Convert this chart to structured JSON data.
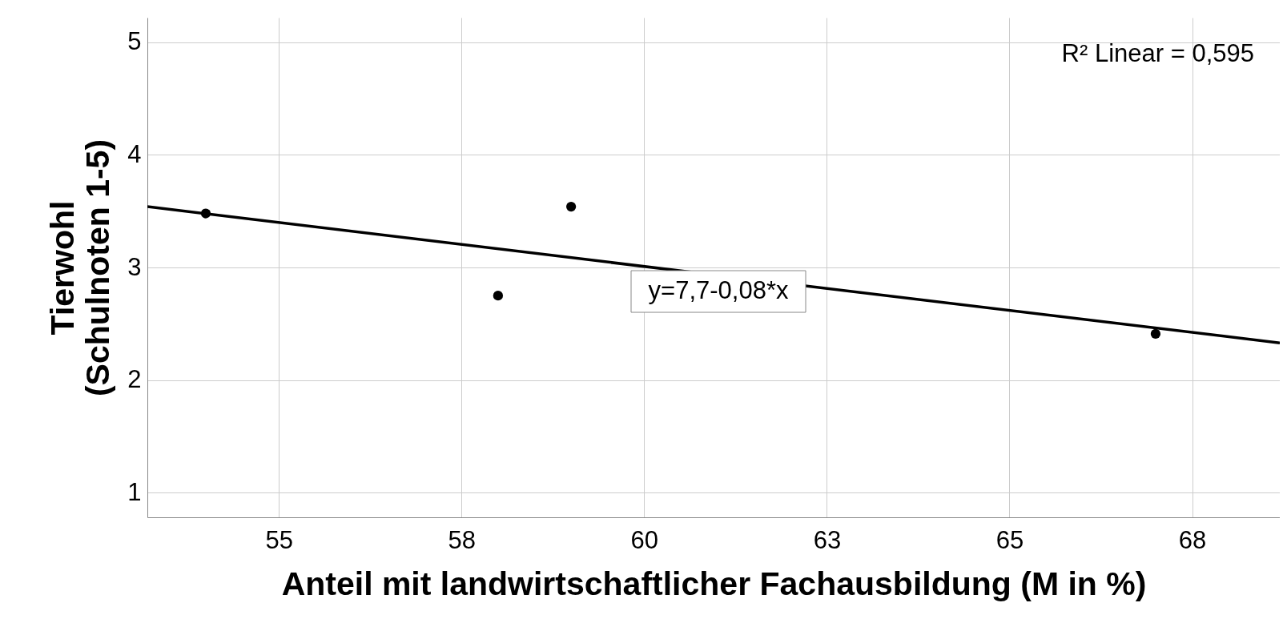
{
  "chart_data": {
    "type": "scatter",
    "xlabel": "Anteil mit landwirtschaftlicher Fachausbildung (M in %)",
    "ylabel": "Tierwohl\n(Schulnoten 1-5)",
    "xlim": [
      53.2,
      68.7
    ],
    "ylim": [
      0.78,
      5.22
    ],
    "xticks": [
      55,
      {
        "value": 57.5,
        "label": "58"
      },
      60,
      {
        "value": 62.5,
        "label": "63"
      },
      65,
      {
        "value": 67.5,
        "label": "68"
      }
    ],
    "yticks": [
      1,
      2,
      3,
      4,
      5
    ],
    "grid": true,
    "series": [
      {
        "marker": "circle",
        "color": "#000000",
        "x": [
          54,
          58,
          59,
          67
        ],
        "values": [
          3.48,
          2.75,
          3.54,
          2.41
        ]
      },
      {
        "type": "line",
        "color": "#000000",
        "x": [
          53.2,
          68.7
        ],
        "values": [
          3.54,
          2.33
        ],
        "line_style": "solid"
      }
    ],
    "annotations": [
      "R² Linear = 0,595",
      "y=7,7-0,08*x"
    ]
  }
}
